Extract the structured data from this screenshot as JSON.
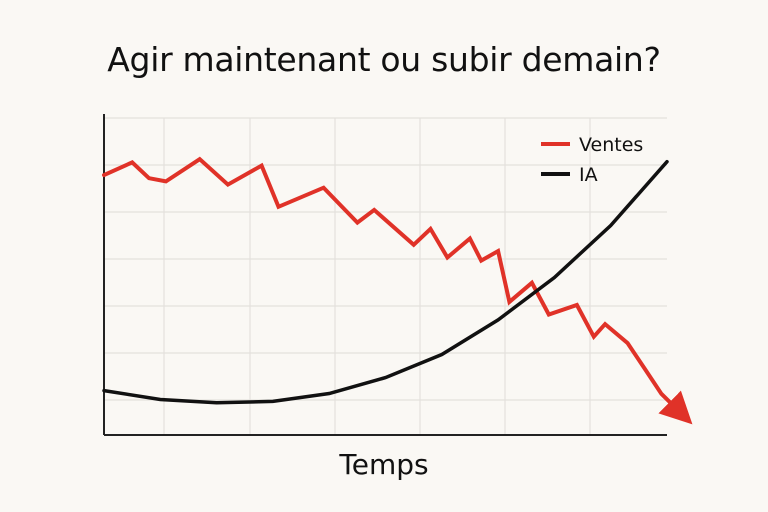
{
  "chart_data": {
    "type": "line",
    "title": "Agir maintenant ou subir demain?",
    "xlabel": "Temps",
    "ylabel": "",
    "grid": true,
    "legend_position": "top-right",
    "xlim": [
      0,
      100
    ],
    "ylim": [
      0,
      100
    ],
    "series": [
      {
        "name": "Ventes",
        "color": "#e03228",
        "x": [
          0,
          5,
          8,
          11,
          17,
          22,
          28,
          31,
          39,
          45,
          48,
          55,
          58,
          61,
          65,
          67,
          70,
          72,
          76,
          79,
          84,
          87,
          89,
          93,
          96,
          99,
          103
        ],
        "y": [
          82,
          86,
          81,
          80,
          87,
          79,
          85,
          72,
          78,
          67,
          71,
          60,
          65,
          56,
          62,
          55,
          58,
          42,
          48,
          38,
          41,
          31,
          35,
          29,
          21,
          13,
          6
        ],
        "arrow_end": true
      },
      {
        "name": "IA",
        "color": "#111111",
        "x": [
          0,
          10,
          20,
          30,
          40,
          50,
          60,
          70,
          80,
          90,
          100
        ],
        "y": [
          14,
          11.2,
          10.2,
          10.6,
          13.1,
          18.1,
          25.4,
          36.3,
          49.7,
          66.1,
          86.2
        ]
      }
    ]
  }
}
